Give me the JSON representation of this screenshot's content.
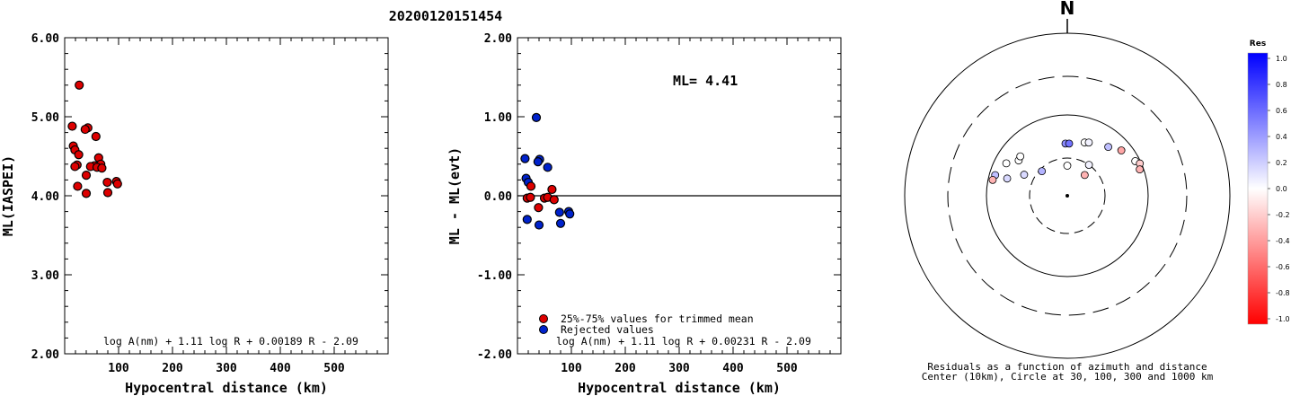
{
  "title": "20200120151454",
  "chart_data": [
    {
      "type": "scatter",
      "ylabel": "ML(IASPEI)",
      "xlabel": "Hypocentral distance (km)",
      "xlim": [
        0,
        600
      ],
      "ylim": [
        2.0,
        6.0
      ],
      "xticks": [
        "100",
        "200",
        "300",
        "400",
        "500"
      ],
      "yticks": [
        "2.00",
        "3.00",
        "4.00",
        "5.00",
        "6.00"
      ],
      "formula": "log A(nm) + 1.11 log R + 0.00189 R - 2.09",
      "points": [
        {
          "x": 27,
          "y": 5.4
        },
        {
          "x": 14,
          "y": 4.88
        },
        {
          "x": 43,
          "y": 4.86
        },
        {
          "x": 38,
          "y": 4.84
        },
        {
          "x": 58,
          "y": 4.75
        },
        {
          "x": 16,
          "y": 4.63
        },
        {
          "x": 19,
          "y": 4.58
        },
        {
          "x": 26,
          "y": 4.52
        },
        {
          "x": 63,
          "y": 4.48
        },
        {
          "x": 67,
          "y": 4.4
        },
        {
          "x": 23,
          "y": 4.39
        },
        {
          "x": 55,
          "y": 4.38
        },
        {
          "x": 48,
          "y": 4.37
        },
        {
          "x": 60,
          "y": 4.36
        },
        {
          "x": 69,
          "y": 4.35
        },
        {
          "x": 19,
          "y": 4.37
        },
        {
          "x": 40,
          "y": 4.26
        },
        {
          "x": 96,
          "y": 4.18
        },
        {
          "x": 79,
          "y": 4.17
        },
        {
          "x": 98,
          "y": 4.15
        },
        {
          "x": 24,
          "y": 4.12
        },
        {
          "x": 80,
          "y": 4.04
        },
        {
          "x": 40,
          "y": 4.03
        }
      ]
    },
    {
      "type": "scatter",
      "ylabel": "ML - ML(evt)",
      "xlabel": "Hypocentral distance (km)",
      "xlim": [
        0,
        600
      ],
      "ylim": [
        -2.0,
        2.0
      ],
      "xticks": [
        "100",
        "200",
        "300",
        "400",
        "500"
      ],
      "yticks": [
        "-2.00",
        "-1.00",
        "0.00",
        "1.00",
        "2.00"
      ],
      "ml_label": "ML= 4.41",
      "formula": "log A(nm) + 1.11 log R + 0.00231 R - 2.09",
      "legend": [
        {
          "label": "25%-75% values for trimmed mean",
          "color": "#dd0000"
        },
        {
          "label": "Rejected values",
          "color": "#0022cc"
        }
      ],
      "points": [
        {
          "x": 35,
          "y": 0.99,
          "set": "rejected"
        },
        {
          "x": 14,
          "y": 0.47,
          "set": "rejected"
        },
        {
          "x": 41,
          "y": 0.46,
          "set": "rejected"
        },
        {
          "x": 38,
          "y": 0.43,
          "set": "rejected"
        },
        {
          "x": 56,
          "y": 0.36,
          "set": "rejected"
        },
        {
          "x": 16,
          "y": 0.22,
          "set": "rejected"
        },
        {
          "x": 20,
          "y": 0.17,
          "set": "rejected"
        },
        {
          "x": 95,
          "y": -0.2,
          "set": "rejected"
        },
        {
          "x": 78,
          "y": -0.21,
          "set": "rejected"
        },
        {
          "x": 97,
          "y": -0.23,
          "set": "rejected"
        },
        {
          "x": 18,
          "y": -0.3,
          "set": "rejected"
        },
        {
          "x": 80,
          "y": -0.35,
          "set": "rejected"
        },
        {
          "x": 40,
          "y": -0.37,
          "set": "rejected"
        },
        {
          "x": 25,
          "y": 0.12,
          "set": "trimmed"
        },
        {
          "x": 64,
          "y": 0.08,
          "set": "trimmed"
        },
        {
          "x": 18,
          "y": -0.03,
          "set": "trimmed"
        },
        {
          "x": 24,
          "y": -0.02,
          "set": "trimmed"
        },
        {
          "x": 50,
          "y": -0.03,
          "set": "trimmed"
        },
        {
          "x": 56,
          "y": -0.02,
          "set": "trimmed"
        },
        {
          "x": 68,
          "y": -0.05,
          "set": "trimmed"
        },
        {
          "x": 39,
          "y": -0.15,
          "set": "trimmed"
        }
      ]
    },
    {
      "type": "polar",
      "north_label": "N",
      "caption_line1": "Residuals as a function of azimuth and distance",
      "caption_line2": "Center (10km), Circle at 30, 100, 300 and 1000 km",
      "colorbar_title": "Res",
      "colorbar_ticks": [
        "1.0",
        "0.8",
        "0.6",
        "0.4",
        "0.2",
        "0.0",
        "-0.2",
        "-0.4",
        "-0.6",
        "-0.8",
        "-1.0"
      ],
      "colorbar_range": [
        -1.0,
        1.0
      ],
      "residual_points": [
        {
          "az": 358,
          "dist": 45,
          "res": 0.45
        },
        {
          "az": 2,
          "dist": 45,
          "res": 0.55
        },
        {
          "az": 18,
          "dist": 50,
          "res": 0.0
        },
        {
          "az": 22,
          "dist": 52,
          "res": 0.05
        },
        {
          "az": 40,
          "dist": 62,
          "res": 0.25
        },
        {
          "az": 50,
          "dist": 75,
          "res": -0.35
        },
        {
          "az": 63,
          "dist": 88,
          "res": 0.0
        },
        {
          "az": 66,
          "dist": 96,
          "res": -0.2
        },
        {
          "az": 70,
          "dist": 90,
          "res": -0.3
        },
        {
          "az": 306,
          "dist": 56,
          "res": 0.0
        },
        {
          "az": 310,
          "dist": 58,
          "res": 0.0
        },
        {
          "az": 298,
          "dist": 72,
          "res": 0.0
        },
        {
          "az": 286,
          "dist": 85,
          "res": 0.25
        },
        {
          "az": 282,
          "dist": 88,
          "res": -0.3
        },
        {
          "az": 286,
          "dist": 60,
          "res": 0.15
        },
        {
          "az": 296,
          "dist": 40,
          "res": 0.15
        },
        {
          "az": 314,
          "dist": 28,
          "res": 0.3
        },
        {
          "az": 0,
          "dist": 24,
          "res": 0.0
        },
        {
          "az": 35,
          "dist": 30,
          "res": 0.05
        },
        {
          "az": 40,
          "dist": 22,
          "res": -0.3
        }
      ]
    }
  ]
}
